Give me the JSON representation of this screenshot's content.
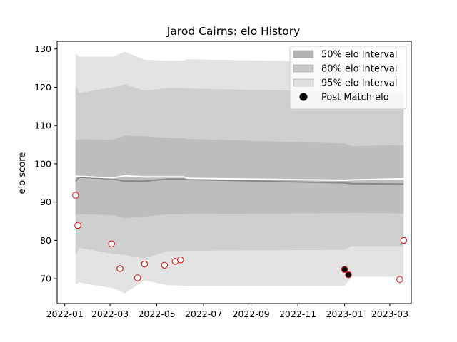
{
  "chart_data": {
    "type": "area",
    "title": "Jarod Cairns: elo History",
    "xlabel": "",
    "ylabel": "elo score",
    "x_tick_labels": [
      "2022-01",
      "2022-03",
      "2022-05",
      "2022-07",
      "2022-09",
      "2022-11",
      "2023-01",
      "2023-03"
    ],
    "x_ticks": [
      "2022-01-01",
      "2022-03-01",
      "2022-05-01",
      "2022-07-01",
      "2022-09-01",
      "2022-11-01",
      "2023-01-01",
      "2023-03-01"
    ],
    "xlim": [
      "2021-12-22",
      "2023-03-29"
    ],
    "y_ticks": [
      70,
      80,
      90,
      100,
      110,
      120,
      130
    ],
    "ylim": [
      63.5,
      132
    ],
    "grid": false,
    "legend_position": "top-right",
    "legend": [
      {
        "label": "50% elo Interval",
        "color": "#b3b3b3",
        "kind": "patch"
      },
      {
        "label": "80% elo Interval",
        "color": "#c6c6c6",
        "kind": "patch"
      },
      {
        "label": "95% elo Interval",
        "color": "#dedede",
        "kind": "patch"
      },
      {
        "label": "Post Match elo",
        "color": "#000000",
        "kind": "marker"
      }
    ],
    "colors": {
      "band95": "#e3e3e3",
      "band80": "#cfcfcf",
      "band50": "#bdbdbd",
      "mean_line": "#888888",
      "upper_line": "#ffffff",
      "hollow_edge": "#e00000",
      "filled_face": "#000000"
    },
    "bands": {
      "dates": [
        "2022-01-15",
        "2022-01-20",
        "2022-03-05",
        "2022-03-20",
        "2022-04-15",
        "2022-05-15",
        "2022-06-05",
        "2022-06-10",
        "2023-01-01",
        "2023-01-10",
        "2023-03-19"
      ],
      "p95_low": [
        68.5,
        69.0,
        67.5,
        66.2,
        69.5,
        68.3,
        68.2,
        68.1,
        68.1,
        70.5,
        70.5
      ],
      "p95_high": [
        128.8,
        128.0,
        128.0,
        129.3,
        127.2,
        126.9,
        127.0,
        127.3,
        126.6,
        126.5,
        126.4
      ],
      "p80_low": [
        76.0,
        78.0,
        76.5,
        76.2,
        75.3,
        77.2,
        77.2,
        77.3,
        77.5,
        78.5,
        78.5
      ],
      "p80_high": [
        120.3,
        118.5,
        120.0,
        120.8,
        119.1,
        119.8,
        119.8,
        119.7,
        118.8,
        118.4,
        118.3
      ],
      "p50_low": [
        86.5,
        86.8,
        86.6,
        85.8,
        86.2,
        86.8,
        86.8,
        86.9,
        87.1,
        87.2,
        87.0
      ],
      "p50_high": [
        106.3,
        106.4,
        106.3,
        107.4,
        107.2,
        106.8,
        106.7,
        106.5,
        105.3,
        104.6,
        104.9
      ],
      "mean": [
        95.5,
        96.5,
        96.0,
        95.5,
        95.5,
        96.0,
        96.0,
        95.9,
        95.0,
        94.8,
        94.7
      ],
      "upper_line": [
        96.8,
        96.7,
        96.3,
        96.9,
        96.6,
        96.6,
        96.6,
        96.2,
        95.7,
        95.8,
        96.1
      ]
    },
    "points": [
      {
        "date": "2022-01-15",
        "elo": 91.8,
        "filled": false
      },
      {
        "date": "2022-01-18",
        "elo": 83.9,
        "filled": false
      },
      {
        "date": "2022-03-03",
        "elo": 79.1,
        "filled": false
      },
      {
        "date": "2022-03-14",
        "elo": 72.6,
        "filled": false
      },
      {
        "date": "2022-04-06",
        "elo": 70.2,
        "filled": false
      },
      {
        "date": "2022-04-15",
        "elo": 73.8,
        "filled": false
      },
      {
        "date": "2022-05-11",
        "elo": 73.5,
        "filled": false
      },
      {
        "date": "2022-05-25",
        "elo": 74.5,
        "filled": false
      },
      {
        "date": "2022-06-01",
        "elo": 74.9,
        "filled": false
      },
      {
        "date": "2023-01-01",
        "elo": 72.4,
        "filled": true
      },
      {
        "date": "2023-01-06",
        "elo": 71.0,
        "filled": true
      },
      {
        "date": "2023-03-14",
        "elo": 69.8,
        "filled": false
      },
      {
        "date": "2023-03-19",
        "elo": 80.0,
        "filled": false
      }
    ]
  }
}
